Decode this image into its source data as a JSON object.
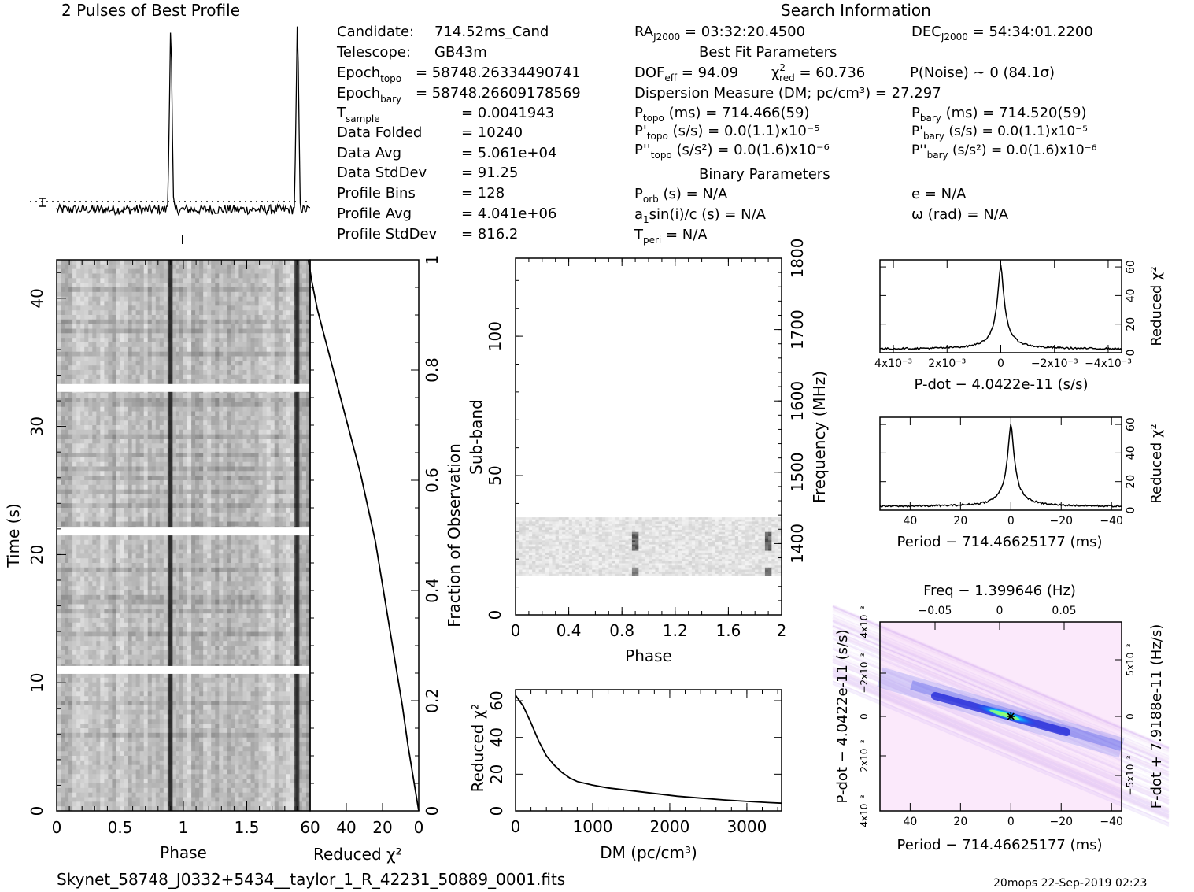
{
  "header": {
    "profile_title": "2 Pulses of Best Profile",
    "search_title": "Search Information",
    "best_fit_title": "Best Fit Parameters",
    "binary_title": "Binary Parameters"
  },
  "info_left": [
    {
      "label": "Candidate:",
      "value": "714.52ms_Cand"
    },
    {
      "label": "Telescope:",
      "value": "GB43m"
    },
    {
      "label": "Epoch",
      "sub": "topo",
      "value": "= 58748.26334490741"
    },
    {
      "label": "Epoch",
      "sub": "bary",
      "value": "= 58748.26609178569"
    },
    {
      "label": "T",
      "sub": "sample",
      "value": "=   0.0041943"
    },
    {
      "label": "Data Folded",
      "value": "=   10240"
    },
    {
      "label": "Data Avg",
      "value": "=   5.061e+04"
    },
    {
      "label": "Data StdDev",
      "value": "=   91.25"
    },
    {
      "label": "Profile Bins",
      "value": "=   128"
    },
    {
      "label": "Profile Avg",
      "value": "=   4.041e+06"
    },
    {
      "label": "Profile StdDev",
      "value": "=   816.2"
    }
  ],
  "info_mid": {
    "ra": {
      "label": "RA",
      "sub": "J2000",
      "value": " = 03:32:20.4500"
    },
    "dof": {
      "label": "DOF",
      "sub": "eff",
      "value": " = 94.09"
    },
    "chi_red": {
      "label": "χ",
      "sup": "2",
      "sub": "red",
      "value": " = 60.736"
    },
    "dm": "Dispersion Measure (DM; pc/cm³) = 27.297",
    "ptopo": {
      "label": "P",
      "sub": "topo",
      "value": " (ms) =  714.466(59)"
    },
    "pdtopo": {
      "label": "P'",
      "sub": "topo",
      "value": " (s/s) = 0.0(1.1)x10⁻⁵"
    },
    "pddtopo": {
      "label": "P''",
      "sub": "topo",
      "value": " (s/s²) = 0.0(1.6)x10⁻⁶"
    },
    "porb": {
      "label": "P",
      "sub": "orb",
      "value": " (s) = N/A"
    },
    "a1": {
      "label": "a",
      "sub": "1",
      "value": "sin(i)/c (s) = N/A"
    },
    "tperi": {
      "label": "T",
      "sub": "peri",
      "value": " = N/A"
    }
  },
  "info_right": {
    "dec": {
      "label": "DEC",
      "sub": "J2000",
      "value": " = 54:34:01.2200"
    },
    "pnoise": "P(Noise) ~ 0   (84.1σ)",
    "pbary": {
      "label": "P",
      "sub": "bary",
      "value": " (ms) =  714.520(59)"
    },
    "pdbary": {
      "label": "P'",
      "sub": "bary",
      "value": " (s/s) = 0.0(1.1)x10⁻⁵"
    },
    "pddbary": {
      "label": "P''",
      "sub": "bary",
      "value": " (s/s²) = 0.0(1.6)x10⁻⁶"
    },
    "ecc": "e = N/A",
    "omega": "ω (rad) = N/A"
  },
  "footer": {
    "filename": "Skynet_58748_J0332+5434__taylor_1_R_42231_50889_0001.fits",
    "stamp": "20mops 22-Sep-2019 02:23"
  },
  "chart_data": [
    {
      "type": "line",
      "name": "profile",
      "title": "2 Pulses of Best Profile",
      "pulse_phases": [
        0.9,
        1.9
      ],
      "peak_relative": 1.0,
      "baseline_relative": 0.0
    },
    {
      "type": "heatmap",
      "name": "time-phase",
      "xlabel": "Phase",
      "ylabel": "Time (s)",
      "xlim": [
        0,
        2
      ],
      "ylim": [
        0,
        43
      ],
      "xticks": [
        "0",
        "0.5",
        "1",
        "1.5"
      ],
      "yticks": [
        "0",
        "10",
        "20",
        "30",
        "40"
      ],
      "pulse_phases": [
        0.9,
        1.9
      ],
      "gap_times": [
        11.0,
        21.8,
        33.0
      ]
    },
    {
      "type": "line",
      "name": "reduced-chi2-vs-fraction",
      "xlabel": "Reduced χ²",
      "ylabel": "Fraction of Observation",
      "xlim": [
        60,
        0
      ],
      "ylim": [
        0,
        1
      ],
      "xticks": [
        "60",
        "40",
        "20",
        "0"
      ],
      "yticks": [
        "0",
        "0.2",
        "0.4",
        "0.6",
        "0.8",
        "1"
      ],
      "x": [
        0,
        3,
        6,
        9,
        12,
        15,
        18,
        21,
        24,
        28,
        32,
        36,
        40,
        44,
        48,
        52,
        56,
        59,
        61
      ],
      "y": [
        0.0,
        0.06,
        0.12,
        0.19,
        0.25,
        0.31,
        0.37,
        0.43,
        0.49,
        0.55,
        0.61,
        0.66,
        0.71,
        0.76,
        0.81,
        0.86,
        0.91,
        0.96,
        1.0
      ]
    },
    {
      "type": "heatmap",
      "name": "subband-phase",
      "xlabel": "Phase",
      "ylabel": "Sub-band",
      "y2label": "Frequency (MHz)",
      "xlim": [
        0,
        2
      ],
      "ylim": [
        0,
        128
      ],
      "y2lim": [
        1300,
        1800
      ],
      "xticks": [
        "0",
        "0.4",
        "0.8",
        "1.2",
        "1.6",
        "2"
      ],
      "yticks": [
        "0",
        "50",
        "100"
      ],
      "y2ticks": [
        "1400",
        "1500",
        "1600",
        "1700",
        "1800"
      ],
      "data_band": [
        14,
        35
      ],
      "pulse_phases": [
        0.9,
        1.9
      ]
    },
    {
      "type": "line",
      "name": "dm-chi2",
      "xlabel": "DM (pc/cm³)",
      "ylabel": "Reduced χ²",
      "xlim": [
        0,
        3450
      ],
      "ylim": [
        0,
        66
      ],
      "xticks": [
        "0",
        "1000",
        "2000",
        "3000"
      ],
      "yticks": [
        "0",
        "20",
        "40",
        "60"
      ],
      "x": [
        0,
        100,
        200,
        300,
        400,
        500,
        600,
        700,
        800,
        1000,
        1200,
        1500,
        1800,
        2100,
        2400,
        2700,
        3000,
        3300,
        3450
      ],
      "y": [
        63,
        57,
        48,
        38,
        30,
        25,
        21,
        18,
        16,
        14,
        12.5,
        11,
        9.5,
        8,
        7,
        6,
        5.2,
        4.5,
        4.2
      ]
    },
    {
      "type": "line",
      "name": "pdot-chi2",
      "xlabel": "P-dot − 4.0422e-11 (s/s)",
      "ylabel": "Reduced χ²",
      "xlim": [
        0.0045,
        -0.0045
      ],
      "ylim": [
        0,
        65
      ],
      "xticks": [
        "4x10⁻³",
        "2x10⁻³",
        "0",
        "−2x10⁻³",
        "−4x10⁻³"
      ],
      "yticks": [
        "0",
        "20",
        "40",
        "60"
      ],
      "peak": {
        "x": 0,
        "y": 61
      }
    },
    {
      "type": "line",
      "name": "period-chi2",
      "xlabel": "Period − 714.46625177 (ms)",
      "ylabel": "Reduced χ²",
      "xlim": [
        52,
        -44
      ],
      "ylim": [
        0,
        65
      ],
      "xticks": [
        "40",
        "20",
        "0",
        "−20",
        "−40"
      ],
      "yticks": [
        "0",
        "20",
        "40",
        "60"
      ],
      "peak": {
        "x": 0,
        "y": 61
      }
    },
    {
      "type": "heatmap",
      "name": "period-pdot",
      "title": "Freq − 1.399646 (Hz)",
      "xlabel": "Period − 714.46625177 (ms)",
      "ylabel": "P-dot − 4.0422e-11 (s/s)",
      "y2label": "F-dot + 7.9188e-11 (Hz/s)",
      "xlim": [
        52,
        -44
      ],
      "xticks": [
        "40",
        "20",
        "0",
        "−20",
        "−40"
      ],
      "topticks": [
        "−0.05",
        "0",
        "0.05"
      ],
      "yticks": [
        "4x10⁻³",
        "2x10⁻³",
        "0",
        "−2x10⁻³",
        "4x10⁻³"
      ],
      "y2ticks": [
        "−5x10⁻³",
        "0",
        "5x10⁻³"
      ],
      "best": {
        "x": 0,
        "y": 0
      }
    }
  ]
}
